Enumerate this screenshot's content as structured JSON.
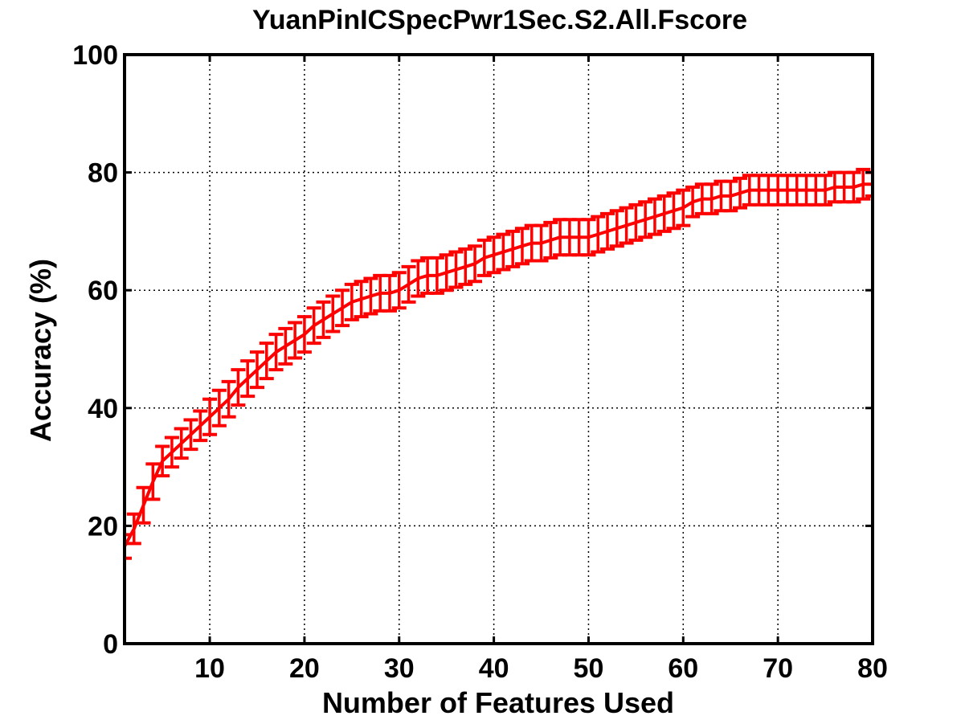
{
  "chart_data": {
    "type": "line",
    "title": "YuanPinICSpecPwr1Sec.S2.All.Fscore",
    "xlabel": "Number of Features Used",
    "ylabel": "Accuracy (%)",
    "xlim": [
      1,
      80
    ],
    "ylim": [
      0,
      100
    ],
    "xticks": [
      10,
      20,
      30,
      40,
      50,
      60,
      70,
      80
    ],
    "yticks": [
      0,
      20,
      40,
      60,
      80,
      100
    ],
    "grid": true,
    "legend": "none",
    "series": [
      {
        "color": "#ff0000",
        "error_bars": true,
        "x": [
          1,
          2,
          3,
          4,
          5,
          6,
          7,
          8,
          9,
          10,
          11,
          12,
          13,
          14,
          15,
          16,
          17,
          18,
          19,
          20,
          21,
          22,
          23,
          24,
          25,
          26,
          27,
          28,
          29,
          30,
          31,
          32,
          33,
          34,
          35,
          36,
          37,
          38,
          39,
          40,
          41,
          42,
          43,
          44,
          45,
          46,
          47,
          48,
          49,
          50,
          51,
          52,
          53,
          54,
          55,
          56,
          57,
          58,
          59,
          60,
          61,
          62,
          63,
          64,
          65,
          66,
          67,
          68,
          69,
          70,
          71,
          72,
          73,
          74,
          75,
          76,
          77,
          78,
          79,
          80
        ],
        "y": [
          16.5,
          19.5,
          23.5,
          27.5,
          31,
          32.5,
          34,
          35.5,
          37,
          38.5,
          40,
          41.5,
          43.5,
          45,
          46.5,
          48,
          49.5,
          50.5,
          51.5,
          52.5,
          54,
          55,
          56,
          57,
          58,
          58.5,
          59,
          59.5,
          59.5,
          60,
          61,
          62,
          62.5,
          62.5,
          63,
          63.5,
          64,
          64.5,
          65.5,
          66,
          66.5,
          67,
          67.5,
          68,
          68,
          68.5,
          69,
          69,
          69,
          69,
          69.5,
          70,
          70.5,
          71,
          71.5,
          72,
          72.5,
          73,
          73.5,
          74,
          75,
          75.5,
          75.5,
          76,
          76,
          76.5,
          77,
          77,
          77,
          77,
          77,
          77,
          77,
          77,
          77,
          77.5,
          77.5,
          77.5,
          78,
          78
        ],
        "err": [
          2,
          2.5,
          3,
          3,
          2.5,
          2.5,
          2.5,
          2.5,
          2.5,
          3,
          3,
          3,
          3,
          3,
          3,
          3,
          3,
          3,
          3,
          3,
          3,
          3,
          3,
          3,
          3,
          3,
          3,
          3,
          3,
          3,
          3,
          3,
          3,
          3,
          3,
          3,
          3,
          3,
          3,
          3,
          3,
          3,
          3,
          3,
          3,
          3,
          3,
          3,
          3,
          3,
          3,
          3,
          3,
          3,
          3,
          3,
          3,
          3,
          3,
          3,
          2.5,
          2.5,
          2.5,
          2.5,
          2.5,
          2.5,
          2.5,
          2.5,
          2.5,
          2.5,
          2.5,
          2.5,
          2.5,
          2.5,
          2.5,
          2.5,
          2.5,
          2.5,
          2.5,
          2
        ]
      }
    ]
  }
}
